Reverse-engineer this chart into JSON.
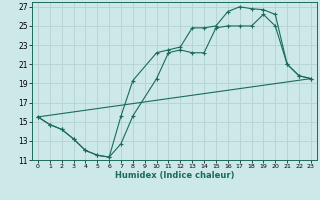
{
  "xlabel": "Humidex (Indice chaleur)",
  "bg_color": "#cce8e8",
  "grid_color": "#b8d4d4",
  "line_color": "#1a6b5a",
  "xlim": [
    -0.5,
    23.5
  ],
  "ylim": [
    11,
    27.5
  ],
  "xticks": [
    0,
    1,
    2,
    3,
    4,
    5,
    6,
    7,
    8,
    9,
    10,
    11,
    12,
    13,
    14,
    15,
    16,
    17,
    18,
    19,
    20,
    21,
    22,
    23
  ],
  "yticks": [
    11,
    13,
    15,
    17,
    19,
    21,
    23,
    25,
    27
  ],
  "line1_x": [
    0,
    1,
    2,
    3,
    4,
    5,
    6,
    7,
    8,
    10,
    11,
    12,
    13,
    14,
    15,
    16,
    17,
    18,
    19,
    20,
    21,
    22,
    23
  ],
  "line1_y": [
    15.5,
    14.7,
    14.2,
    13.2,
    12.0,
    11.5,
    11.3,
    15.6,
    19.3,
    22.2,
    22.5,
    22.8,
    24.8,
    24.8,
    25.0,
    26.5,
    27.0,
    26.8,
    26.7,
    26.2,
    21.0,
    19.8,
    19.5
  ],
  "line2_x": [
    0,
    1,
    2,
    3,
    4,
    5,
    6,
    7,
    8,
    10,
    11,
    12,
    13,
    14,
    15,
    16,
    17,
    18,
    19,
    20,
    21,
    22,
    23
  ],
  "line2_y": [
    15.5,
    14.7,
    14.2,
    13.2,
    12.0,
    11.5,
    11.3,
    12.7,
    15.6,
    19.5,
    22.2,
    22.5,
    22.2,
    22.2,
    24.8,
    25.0,
    25.0,
    25.0,
    26.2,
    25.0,
    21.0,
    19.8,
    19.5
  ],
  "line3_x": [
    0,
    23
  ],
  "line3_y": [
    15.5,
    19.5
  ]
}
